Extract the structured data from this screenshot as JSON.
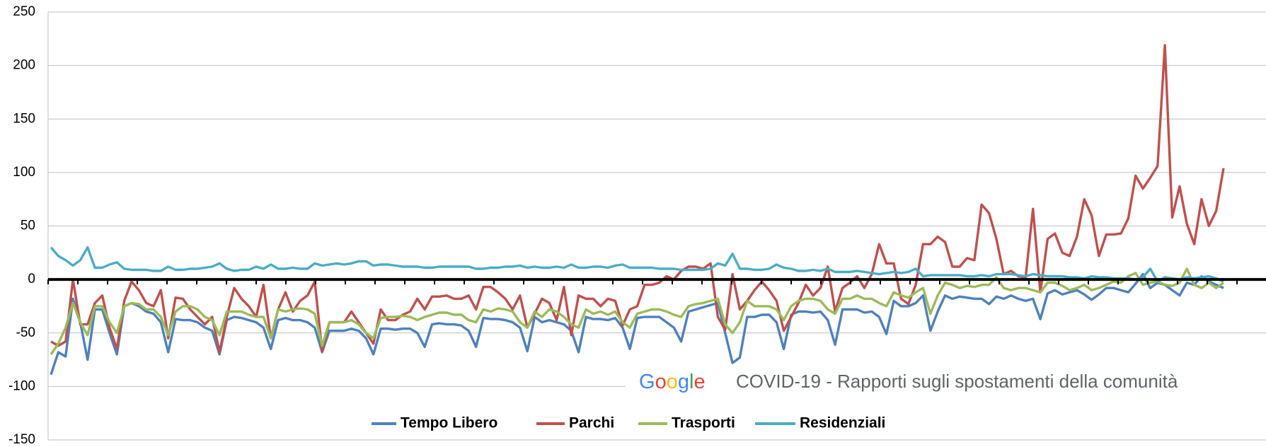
{
  "chart_data": {
    "type": "line",
    "ylim": [
      -150,
      250
    ],
    "yticks": [
      -150,
      -100,
      -50,
      0,
      50,
      100,
      150,
      200,
      250
    ],
    "grid": true,
    "annotations": [
      "Google",
      "COVID-19 - Rapporti sugli spostamenti della comunità"
    ],
    "legend": "bottom",
    "series": [
      {
        "name": "Tempo Libero",
        "color": "#4f81bd",
        "values": [
          -89,
          -68,
          -72,
          -18,
          -40,
          -75,
          -28,
          -28,
          -50,
          -70,
          -25,
          -22,
          -25,
          -30,
          -32,
          -40,
          -68,
          -37,
          -38,
          -38,
          -40,
          -45,
          -48,
          -70,
          -38,
          -35,
          -36,
          -38,
          -40,
          -45,
          -65,
          -38,
          -36,
          -38,
          -38,
          -40,
          -45,
          -68,
          -48,
          -48,
          -48,
          -46,
          -48,
          -55,
          -70,
          -46,
          -46,
          -47,
          -46,
          -46,
          -50,
          -63,
          -42,
          -41,
          -42,
          -42,
          -43,
          -48,
          -63,
          -36,
          -37,
          -37,
          -38,
          -40,
          -45,
          -67,
          -35,
          -40,
          -38,
          -40,
          -42,
          -48,
          -68,
          -35,
          -37,
          -37,
          -38,
          -36,
          -45,
          -65,
          -36,
          -35,
          -35,
          -35,
          -40,
          -45,
          -58,
          -30,
          -28,
          -26,
          -24,
          -22,
          -50,
          -78,
          -73,
          -35,
          -35,
          -33,
          -33,
          -40,
          -65,
          -33,
          -30,
          -30,
          -31,
          -30,
          -38,
          -61,
          -28,
          -28,
          -28,
          -31,
          -30,
          -35,
          -51,
          -20,
          -25,
          -25,
          -22,
          -15,
          -48,
          -30,
          -15,
          -18,
          -16,
          -17,
          -18,
          -18,
          -23,
          -16,
          -18,
          -15,
          -18,
          -20,
          -18,
          -37,
          -13,
          -10,
          -14,
          -12,
          -10,
          -14,
          -19,
          -14,
          -8,
          -8,
          -10,
          -12,
          -4,
          5,
          -8,
          -3,
          -5,
          -10,
          -15,
          -3,
          -5,
          3,
          -2,
          -5,
          -8
        ]
      },
      {
        "name": "Parchi",
        "color": "#c0504d",
        "values": [
          -58,
          -62,
          -58,
          0,
          -42,
          -42,
          -22,
          -15,
          -45,
          -65,
          -20,
          -2,
          -10,
          -22,
          -25,
          -10,
          -55,
          -17,
          -18,
          -28,
          -35,
          -42,
          -35,
          -68,
          -35,
          -8,
          -18,
          -25,
          -35,
          -5,
          -55,
          -28,
          -12,
          -30,
          -20,
          -15,
          -2,
          -67,
          -40,
          -40,
          -40,
          -30,
          -40,
          -50,
          -60,
          -28,
          -38,
          -38,
          -33,
          -30,
          -18,
          -28,
          -16,
          -16,
          -15,
          -18,
          -18,
          -15,
          -28,
          -7,
          -7,
          -12,
          -18,
          -28,
          -15,
          -45,
          -32,
          -18,
          -22,
          -38,
          -7,
          -52,
          -15,
          -18,
          -18,
          -25,
          -18,
          -20,
          -43,
          -28,
          -25,
          -5,
          -5,
          -3,
          3,
          0,
          8,
          12,
          12,
          10,
          15,
          -35,
          -47,
          5,
          -28,
          -20,
          -10,
          -2,
          -10,
          -20,
          -48,
          -35,
          -22,
          -5,
          -15,
          -8,
          12,
          -30,
          -8,
          -3,
          3,
          -8,
          5,
          33,
          15,
          15,
          -18,
          -23,
          -5,
          33,
          33,
          40,
          35,
          12,
          12,
          20,
          18,
          70,
          62,
          38,
          5,
          8,
          3,
          2,
          66,
          -12,
          38,
          43,
          25,
          22,
          40,
          75,
          60,
          22,
          42,
          42,
          43,
          57,
          97,
          85,
          95,
          106,
          219,
          58,
          87,
          52,
          33,
          75,
          50,
          64,
          104
        ]
      },
      {
        "name": "Trasporti",
        "color": "#9bbb59",
        "values": [
          -70,
          -60,
          -45,
          -22,
          -40,
          -52,
          -25,
          -25,
          -40,
          -50,
          -25,
          -22,
          -23,
          -28,
          -28,
          -35,
          -52,
          -30,
          -25,
          -25,
          -28,
          -35,
          -38,
          -52,
          -30,
          -30,
          -30,
          -33,
          -35,
          -35,
          -55,
          -28,
          -30,
          -28,
          -27,
          -28,
          -32,
          -62,
          -40,
          -40,
          -40,
          -38,
          -42,
          -50,
          -55,
          -36,
          -35,
          -35,
          -34,
          -35,
          -38,
          -35,
          -33,
          -31,
          -31,
          -33,
          -33,
          -38,
          -40,
          -28,
          -30,
          -27,
          -28,
          -30,
          -40,
          -45,
          -30,
          -35,
          -28,
          -30,
          -35,
          -42,
          -45,
          -28,
          -32,
          -30,
          -33,
          -30,
          -40,
          -45,
          -32,
          -30,
          -28,
          -28,
          -30,
          -33,
          -35,
          -25,
          -23,
          -22,
          -20,
          -18,
          -42,
          -50,
          -40,
          -20,
          -25,
          -25,
          -25,
          -28,
          -38,
          -25,
          -20,
          -18,
          -18,
          -20,
          -28,
          -32,
          -18,
          -18,
          -15,
          -18,
          -18,
          -22,
          -25,
          -12,
          -15,
          -17,
          -12,
          -8,
          -32,
          -15,
          -3,
          -5,
          -8,
          -6,
          -7,
          -5,
          -5,
          2,
          -8,
          -10,
          -8,
          -8,
          -10,
          -12,
          -3,
          -3,
          -6,
          -10,
          -8,
          -5,
          -10,
          -8,
          -5,
          -2,
          -3,
          3,
          6,
          -5,
          -3,
          -2,
          -5,
          -6,
          -3,
          10,
          -5,
          -8,
          -3,
          -8,
          -3
        ]
      },
      {
        "name": "Residenziali",
        "color": "#4bacc6",
        "values": [
          30,
          22,
          18,
          13,
          18,
          30,
          11,
          11,
          14,
          16,
          10,
          9,
          9,
          9,
          8,
          8,
          12,
          9,
          9,
          10,
          10,
          11,
          12,
          15,
          10,
          8,
          9,
          9,
          12,
          10,
          14,
          10,
          10,
          11,
          10,
          10,
          15,
          13,
          14,
          15,
          14,
          15,
          17,
          17,
          13,
          14,
          14,
          13,
          12,
          12,
          12,
          11,
          11,
          12,
          12,
          12,
          12,
          12,
          10,
          10,
          11,
          11,
          12,
          12,
          13,
          11,
          12,
          11,
          11,
          12,
          11,
          14,
          11,
          11,
          12,
          12,
          11,
          13,
          14,
          11,
          11,
          11,
          11,
          10,
          10,
          10,
          9,
          9,
          9,
          9,
          10,
          15,
          13,
          24,
          10,
          10,
          9,
          9,
          10,
          14,
          11,
          10,
          8,
          8,
          9,
          8,
          10,
          7,
          7,
          7,
          8,
          7,
          6,
          5,
          6,
          7,
          6,
          7,
          10,
          3,
          4,
          4,
          4,
          4,
          4,
          3,
          3,
          4,
          3,
          5,
          5,
          5,
          4,
          3,
          5,
          4,
          3,
          3,
          3,
          2,
          2,
          1,
          3,
          2,
          2,
          1,
          1,
          1,
          0,
          2,
          10,
          -2,
          2,
          1,
          0,
          2,
          1,
          2,
          3,
          1,
          -2
        ]
      }
    ]
  }
}
